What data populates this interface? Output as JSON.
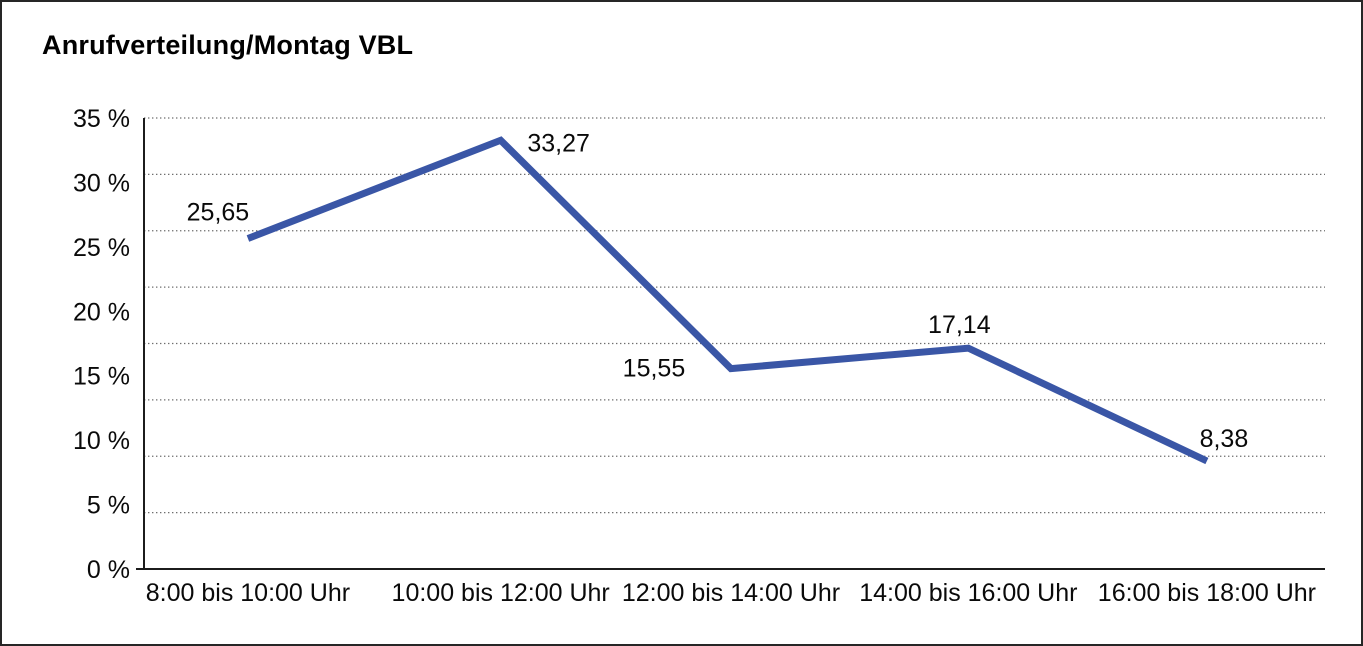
{
  "window": {
    "title": "Anrufverteilung/Montag VBL"
  },
  "chart_data": {
    "type": "line",
    "title": "Anrufverteilung/Montag VBL",
    "categories": [
      "8:00 bis 10:00 Uhr",
      "10:00 bis 12:00 Uhr",
      "12:00 bis 14:00 Uhr",
      "14:00 bis 16:00 Uhr",
      "16:00 bis 18:00 Uhr"
    ],
    "series": [
      {
        "name": "Anrufverteilung",
        "values": [
          25.65,
          33.27,
          15.55,
          17.14,
          8.38
        ],
        "point_labels": [
          "25,65",
          "33,27",
          "15,55",
          "17,14",
          "8,38"
        ],
        "point_label_positions": [
          "above-left",
          "right",
          "left",
          "above",
          "above-right"
        ]
      }
    ],
    "xlabel": "",
    "ylabel": "",
    "ylim": [
      0,
      35
    ],
    "y_ticks": [
      {
        "value": 35,
        "label": "35 %"
      },
      {
        "value": 30,
        "label": "30 %"
      },
      {
        "value": 25,
        "label": "25 %"
      },
      {
        "value": 20,
        "label": "20 %"
      },
      {
        "value": 15,
        "label": "15 %"
      },
      {
        "value": 10,
        "label": "10 %"
      },
      {
        "value": 5,
        "label": "5 %"
      },
      {
        "value": 0,
        "label": "0 %"
      }
    ],
    "grid": {
      "horizontal": true,
      "style": "dotted",
      "interior_line_count": 8
    },
    "legend": "none",
    "line_color": "#3A56A6",
    "axis_color": "#1c1c1c",
    "gridline_color": "#6e6e6e",
    "text_color": "#0a0a0a"
  }
}
